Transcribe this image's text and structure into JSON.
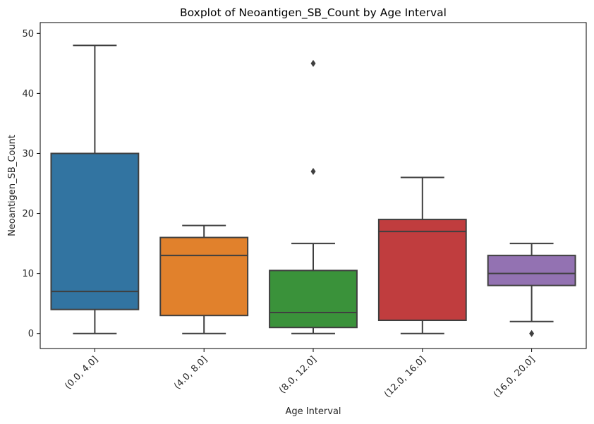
{
  "chart_data": {
    "type": "boxplot",
    "title": "Boxplot of Neoantigen_SB_Count by Age Interval",
    "xlabel": "Age Interval",
    "ylabel": "Neoantigen_SB_Count",
    "ylim": [
      -2.5,
      51.8
    ],
    "yticks": [
      0,
      10,
      20,
      30,
      40,
      50
    ],
    "categories": [
      "(0.0, 4.0]",
      "(4.0, 8.0]",
      "(8.0, 12.0]",
      "(12.0, 16.0]",
      "(16.0, 20.0]"
    ],
    "grid": false,
    "legend": "none",
    "boxes": [
      {
        "category": "(0.0, 4.0]",
        "whisker_low": 0,
        "q1": 4,
        "median": 7,
        "q3": 30,
        "whisker_high": 48,
        "outliers": [],
        "color": "#3274a1"
      },
      {
        "category": "(4.0, 8.0]",
        "whisker_low": 0,
        "q1": 3,
        "median": 13,
        "q3": 16,
        "whisker_high": 18,
        "outliers": [],
        "color": "#e1812c"
      },
      {
        "category": "(8.0, 12.0]",
        "whisker_low": 0,
        "q1": 1,
        "median": 3.5,
        "q3": 10.5,
        "whisker_high": 15,
        "outliers": [
          27,
          45
        ],
        "color": "#3a923a"
      },
      {
        "category": "(12.0, 16.0]",
        "whisker_low": 0,
        "q1": 2.2,
        "median": 17,
        "q3": 19,
        "whisker_high": 26,
        "outliers": [],
        "color": "#c03d3e"
      },
      {
        "category": "(16.0, 20.0]",
        "whisker_low": 2,
        "q1": 8,
        "median": 10,
        "q3": 13,
        "whisker_high": 15,
        "outliers": [
          0
        ],
        "color": "#9372b2"
      }
    ],
    "line_color": "#3f3f3f"
  }
}
